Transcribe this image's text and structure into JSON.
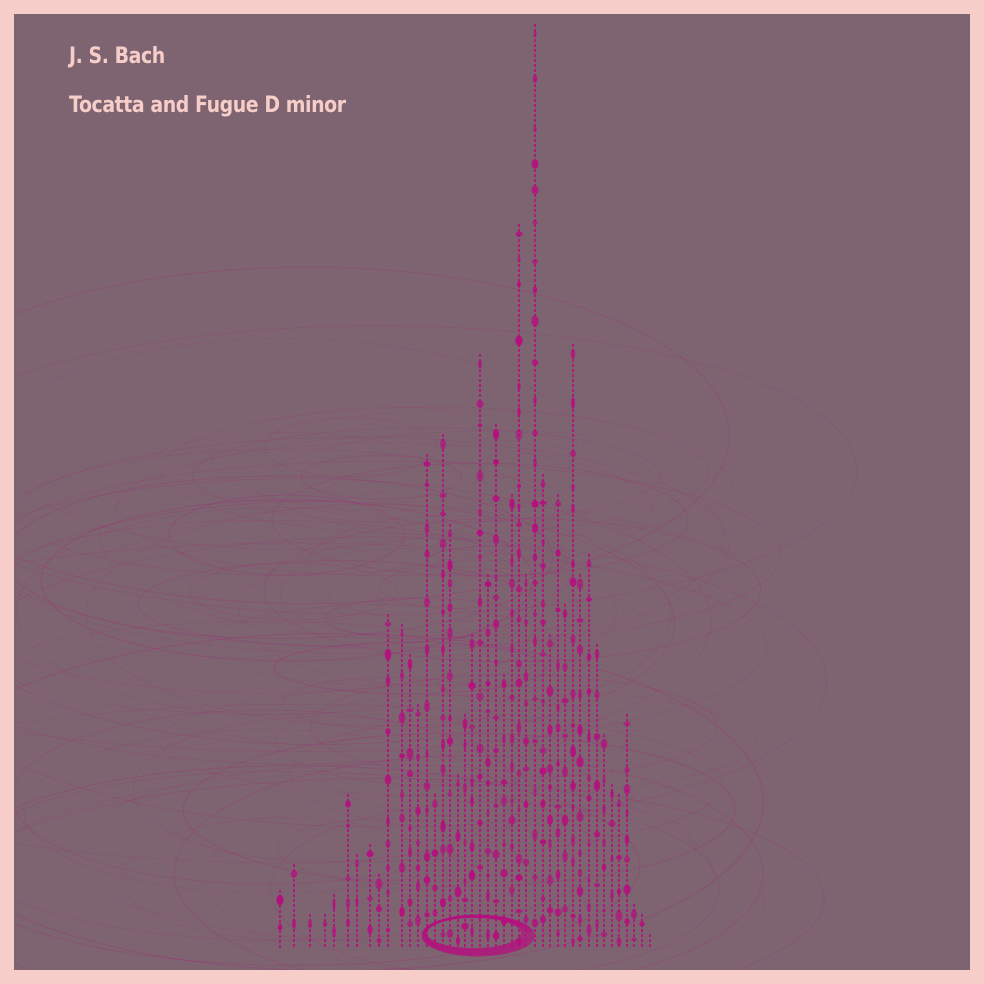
{
  "artwork": {
    "composer": "J. S. Bach",
    "piece_title": "Tocatta and Fugue D minor"
  },
  "colors": {
    "outer_background": "#f6cdc8",
    "canvas_background": "#7d6470",
    "accent_magenta": "#b5107f",
    "text": "#f6cdc8"
  }
}
